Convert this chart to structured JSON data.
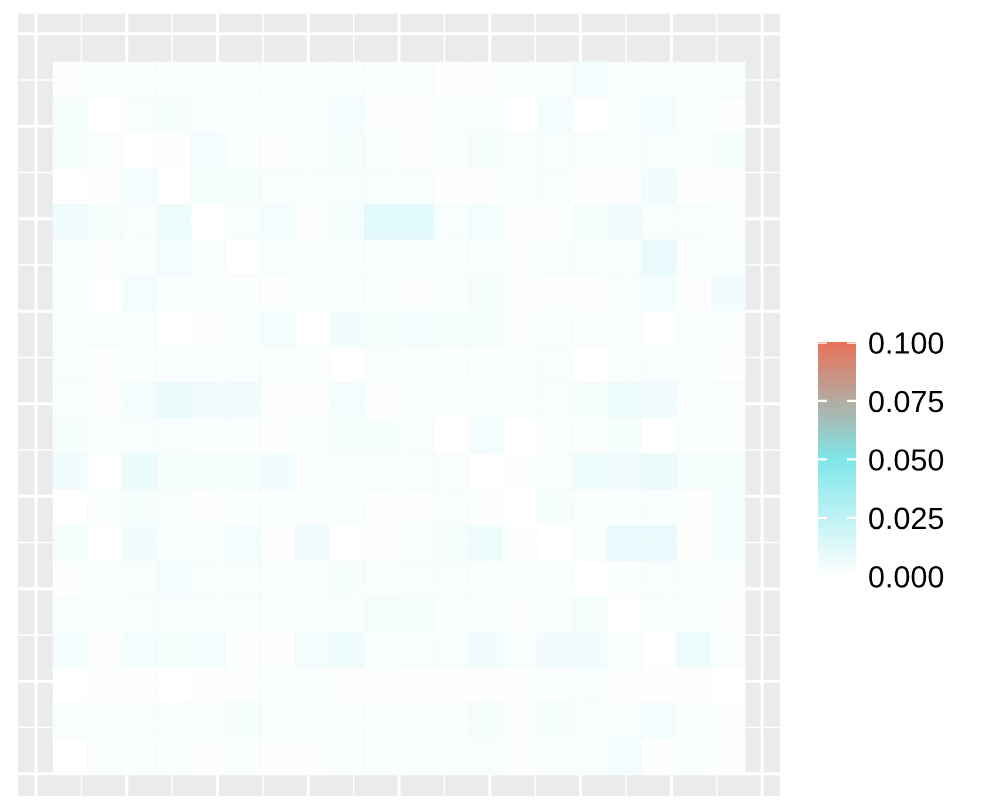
{
  "chart_data": {
    "type": "heatmap",
    "categories": [
      null,
      null,
      null,
      null,
      null,
      null,
      null,
      null,
      null,
      null,
      null,
      null,
      null,
      null,
      null,
      null,
      null,
      null,
      null,
      null
    ],
    "y_categories": [
      null,
      null,
      null,
      null,
      null,
      null,
      null,
      null,
      null,
      null,
      null,
      null,
      null,
      null,
      null,
      null,
      null,
      null,
      null,
      null
    ],
    "cells": [
      [
        0.001,
        0.002,
        0.003,
        0.002,
        0.002,
        0.003,
        0.002,
        0.002,
        0.002,
        0.002,
        0.002,
        0.001,
        0.001,
        0.002,
        0.002,
        0.005,
        0.003,
        0.002,
        0.002,
        0.003
      ],
      [
        0.004,
        0.0,
        0.003,
        0.004,
        0.002,
        0.002,
        0.003,
        0.002,
        0.005,
        0.001,
        0.001,
        0.002,
        0.003,
        0.0,
        0.005,
        0.0,
        0.002,
        0.005,
        0.002,
        0.001
      ],
      [
        0.004,
        0.002,
        0.0,
        0.001,
        0.005,
        0.002,
        0.001,
        0.003,
        0.004,
        0.002,
        0.001,
        0.002,
        0.004,
        0.003,
        0.003,
        0.003,
        0.003,
        0.003,
        0.002,
        0.004
      ],
      [
        0.0,
        0.001,
        0.005,
        0.0,
        0.004,
        0.004,
        0.003,
        0.003,
        0.003,
        0.003,
        0.003,
        0.001,
        0.001,
        0.002,
        0.003,
        0.001,
        0.001,
        0.006,
        0.001,
        0.001
      ],
      [
        0.006,
        0.004,
        0.003,
        0.007,
        0.0,
        0.003,
        0.005,
        0.001,
        0.004,
        0.012,
        0.012,
        0.003,
        0.005,
        0.001,
        0.001,
        0.004,
        0.006,
        0.003,
        0.003,
        0.002
      ],
      [
        0.002,
        0.001,
        0.002,
        0.005,
        0.003,
        0.0,
        0.003,
        0.003,
        0.003,
        0.002,
        0.002,
        0.002,
        0.002,
        0.001,
        0.003,
        0.003,
        0.003,
        0.009,
        0.002,
        0.003
      ],
      [
        0.003,
        0.0,
        0.005,
        0.002,
        0.002,
        0.002,
        0.001,
        0.002,
        0.002,
        0.002,
        0.001,
        0.002,
        0.004,
        0.001,
        0.001,
        0.001,
        0.003,
        0.005,
        0.001,
        0.006
      ],
      [
        0.002,
        0.003,
        0.003,
        0.0,
        0.001,
        0.002,
        0.005,
        0.0,
        0.006,
        0.004,
        0.005,
        0.004,
        0.004,
        0.001,
        0.003,
        0.002,
        0.002,
        0.0,
        0.002,
        0.002
      ],
      [
        0.003,
        0.001,
        0.002,
        0.002,
        0.002,
        0.002,
        0.002,
        0.002,
        0.0,
        0.003,
        0.002,
        0.002,
        0.002,
        0.002,
        0.003,
        0.0,
        0.003,
        0.003,
        0.002,
        0.001
      ],
      [
        0.002,
        0.001,
        0.005,
        0.008,
        0.006,
        0.006,
        0.001,
        0.001,
        0.005,
        0.001,
        0.003,
        0.002,
        0.003,
        0.003,
        0.003,
        0.004,
        0.007,
        0.006,
        0.002,
        0.002
      ],
      [
        0.004,
        0.002,
        0.003,
        0.003,
        0.002,
        0.002,
        0.001,
        0.002,
        0.004,
        0.004,
        0.003,
        0.0,
        0.005,
        0.0,
        0.002,
        0.002,
        0.004,
        0.0,
        0.002,
        0.002
      ],
      [
        0.006,
        0.0,
        0.008,
        0.004,
        0.004,
        0.004,
        0.006,
        0.002,
        0.002,
        0.003,
        0.003,
        0.003,
        0.0,
        0.001,
        0.003,
        0.007,
        0.006,
        0.008,
        0.004,
        0.004
      ],
      [
        0.0,
        0.002,
        0.004,
        0.003,
        0.001,
        0.002,
        0.002,
        0.002,
        0.003,
        0.001,
        0.001,
        0.003,
        0.001,
        0.0,
        0.004,
        0.002,
        0.002,
        0.003,
        0.001,
        0.005
      ],
      [
        0.004,
        0.0,
        0.006,
        0.003,
        0.003,
        0.005,
        0.001,
        0.006,
        0.0,
        0.001,
        0.002,
        0.004,
        0.007,
        0.001,
        0.0,
        0.003,
        0.009,
        0.009,
        0.001,
        0.005
      ],
      [
        0.001,
        0.002,
        0.003,
        0.005,
        0.003,
        0.003,
        0.002,
        0.002,
        0.004,
        0.002,
        0.003,
        0.003,
        0.002,
        0.002,
        0.002,
        0.0,
        0.002,
        0.003,
        0.003,
        0.002
      ],
      [
        0.003,
        0.003,
        0.003,
        0.003,
        0.003,
        0.003,
        0.002,
        0.002,
        0.002,
        0.004,
        0.004,
        0.002,
        0.003,
        0.001,
        0.002,
        0.004,
        0.0,
        0.003,
        0.002,
        0.001
      ],
      [
        0.005,
        0.001,
        0.005,
        0.004,
        0.005,
        0.001,
        0.001,
        0.005,
        0.007,
        0.002,
        0.003,
        0.003,
        0.006,
        0.003,
        0.006,
        0.006,
        0.002,
        0.0,
        0.007,
        0.002
      ],
      [
        0.0,
        0.001,
        0.001,
        0.0,
        0.001,
        0.001,
        0.002,
        0.002,
        0.001,
        0.001,
        0.001,
        0.001,
        0.001,
        0.001,
        0.002,
        0.003,
        0.001,
        0.001,
        0.001,
        0.0
      ],
      [
        0.003,
        0.002,
        0.003,
        0.003,
        0.003,
        0.004,
        0.002,
        0.002,
        0.002,
        0.002,
        0.002,
        0.002,
        0.004,
        0.001,
        0.004,
        0.003,
        0.003,
        0.005,
        0.002,
        0.001
      ],
      [
        0.0,
        0.002,
        0.002,
        0.002,
        0.001,
        0.002,
        0.001,
        0.001,
        0.002,
        0.002,
        0.002,
        0.002,
        0.003,
        0.001,
        0.002,
        0.003,
        0.005,
        0.001,
        0.002,
        0.001
      ]
    ],
    "clim": [
      0,
      0.1
    ],
    "cticks": [
      {
        "value": 0,
        "label": "0.000"
      },
      {
        "value": 0.025,
        "label": "0.025"
      },
      {
        "value": 0.05,
        "label": "0.050"
      },
      {
        "value": 0.075,
        "label": "0.075"
      },
      {
        "value": 0.1,
        "label": "0.100"
      }
    ],
    "grid": true
  }
}
